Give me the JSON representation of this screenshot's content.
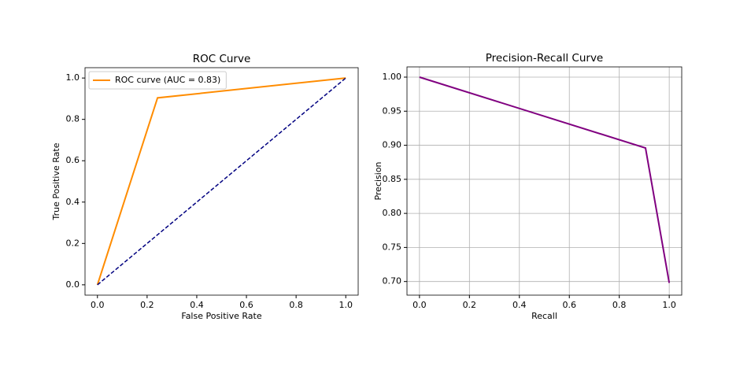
{
  "chart_data": [
    {
      "type": "line",
      "title": "ROC Curve",
      "xlabel": "False Positive Rate",
      "ylabel": "True Positive Rate",
      "xlim": [
        -0.05,
        1.05
      ],
      "ylim": [
        -0.05,
        1.05
      ],
      "xticks": [
        {
          "value": 0,
          "label": "0.0"
        },
        0.2,
        0.4,
        0.6,
        0.8,
        {
          "value": 1,
          "label": "1.0"
        }
      ],
      "yticks": [
        {
          "value": 0,
          "label": "0.0"
        },
        0.2,
        0.4,
        0.6,
        0.8,
        {
          "value": 1,
          "label": "1.0"
        }
      ],
      "grid": false,
      "legend": "upper left",
      "series": [
        {
          "name": "ROC curve (AUC = 0.83)",
          "color": "#ff8c00",
          "linestyle": "solid",
          "x": [
            0,
            0.242,
            1
          ],
          "values": [
            0,
            0.904,
            1
          ]
        },
        {
          "color": "#000080",
          "linestyle": "dashed",
          "x": [
            0,
            1
          ],
          "values": [
            0,
            1
          ]
        }
      ]
    },
    {
      "type": "line",
      "title": "Precision-Recall Curve",
      "xlabel": "Recall",
      "ylabel": "Precision",
      "xlim": [
        -0.05,
        1.05
      ],
      "ylim": [
        0.68,
        1.015
      ],
      "xticks": [
        {
          "value": 0,
          "label": "0.0"
        },
        0.2,
        0.4,
        0.6,
        0.8,
        {
          "value": 1,
          "label": "1.0"
        }
      ],
      "yticks": [
        {
          "value": 0.7,
          "label": "0.70"
        },
        0.75,
        {
          "value": 0.8,
          "label": "0.80"
        },
        0.85,
        {
          "value": 0.9,
          "label": "0.90"
        },
        0.95,
        {
          "value": 1,
          "label": "1.00"
        }
      ],
      "grid": true,
      "series": [
        {
          "color": "#800080",
          "linestyle": "solid",
          "x": [
            0,
            0.905,
            1
          ],
          "values": [
            1,
            0.896,
            0.698
          ]
        }
      ]
    }
  ]
}
